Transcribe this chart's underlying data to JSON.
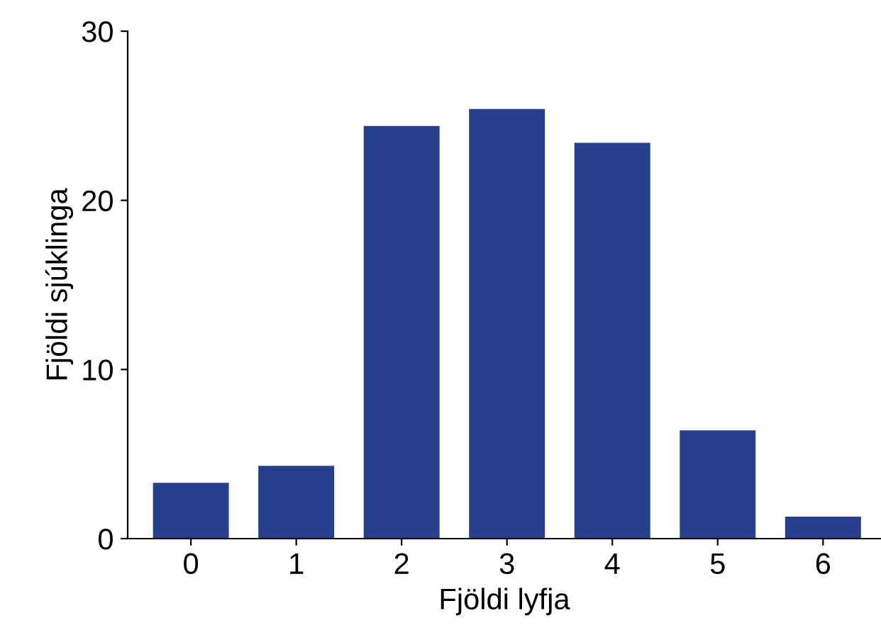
{
  "chart_data": {
    "type": "bar",
    "xlabel": "Fjöldi lyfja",
    "ylabel": "Fjöldi sjúklinga",
    "categories": [
      "0",
      "1",
      "2",
      "3",
      "4",
      "5",
      "6"
    ],
    "values": [
      3.3,
      4.3,
      24.4,
      25.4,
      23.4,
      6.4,
      1.3
    ],
    "color": "#26408e",
    "ylim": [
      0,
      30
    ],
    "yticks": [
      0,
      10,
      20,
      30
    ],
    "grid": false
  }
}
